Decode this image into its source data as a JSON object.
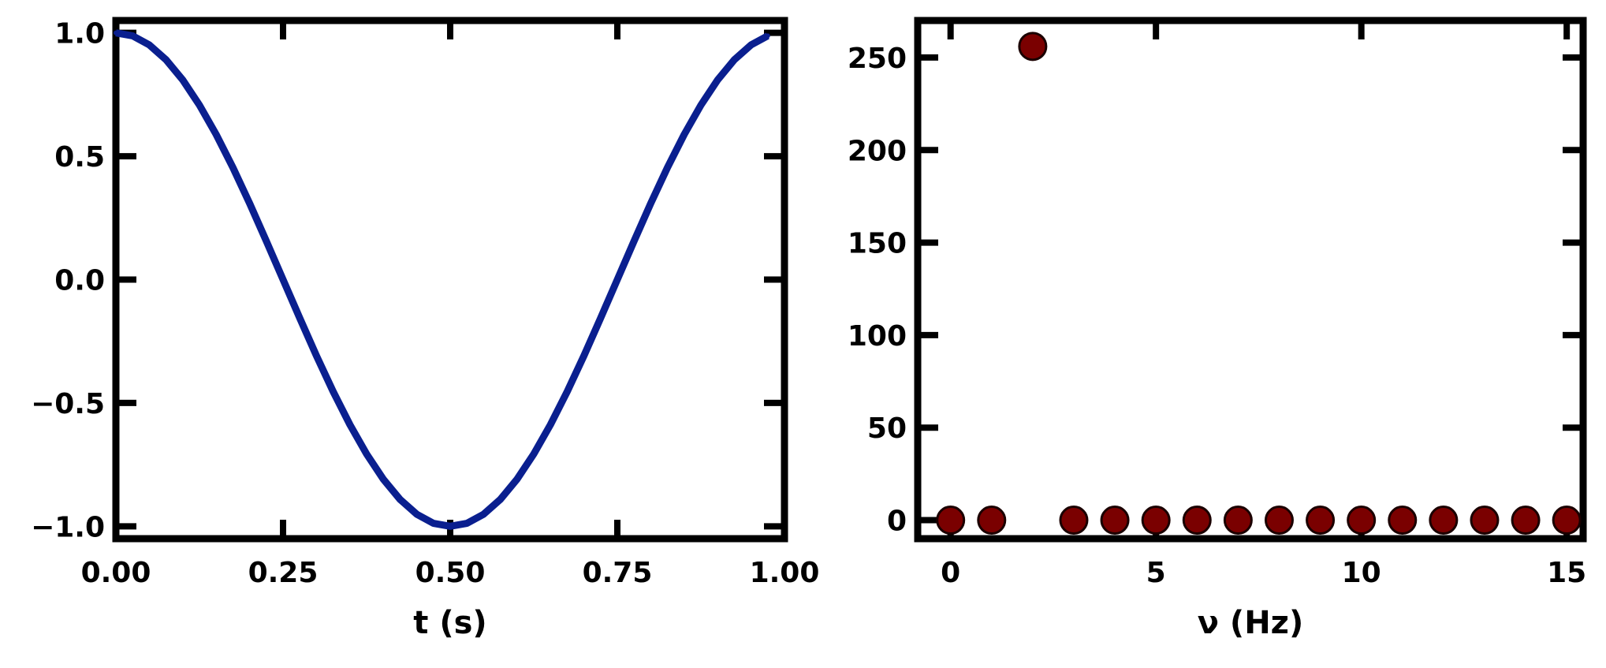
{
  "chart_data": [
    {
      "type": "line",
      "title": "",
      "xlabel": "t (s)",
      "ylabel": "",
      "xlim": [
        0.0,
        1.0
      ],
      "ylim": [
        -1.05,
        1.05
      ],
      "xticks": [
        0.0,
        0.25,
        0.5,
        0.75,
        1.0
      ],
      "xtick_labels": [
        "0.00",
        "0.25",
        "0.50",
        "0.75",
        "1.00"
      ],
      "yticks": [
        -1.0,
        -0.5,
        0.0,
        0.5,
        1.0
      ],
      "ytick_labels": [
        "−1.0",
        "−0.5",
        "0.0",
        "0.5",
        "1.0"
      ],
      "grid": false,
      "color": "#0a1f8f",
      "series": [
        {
          "x": [
            0.0,
            0.025,
            0.05,
            0.075,
            0.1,
            0.125,
            0.15,
            0.175,
            0.2,
            0.225,
            0.25,
            0.275,
            0.3,
            0.325,
            0.35,
            0.375,
            0.4,
            0.425,
            0.45,
            0.475,
            0.5,
            0.525,
            0.55,
            0.575,
            0.6,
            0.625,
            0.65,
            0.675,
            0.7,
            0.725,
            0.75,
            0.775,
            0.8,
            0.825,
            0.85,
            0.875,
            0.9,
            0.925,
            0.95,
            0.975
          ],
          "y": [
            1.0,
            0.988,
            0.951,
            0.891,
            0.809,
            0.707,
            0.588,
            0.454,
            0.309,
            0.156,
            0.0,
            -0.156,
            -0.309,
            -0.454,
            -0.588,
            -0.707,
            -0.809,
            -0.891,
            -0.951,
            -0.988,
            -1.0,
            -0.988,
            -0.951,
            -0.891,
            -0.809,
            -0.707,
            -0.588,
            -0.454,
            -0.309,
            -0.156,
            0.0,
            0.156,
            0.309,
            0.454,
            0.588,
            0.707,
            0.809,
            0.891,
            0.951,
            0.988
          ]
        }
      ]
    },
    {
      "type": "scatter",
      "title": "",
      "xlabel": "ν (Hz)",
      "ylabel": "",
      "xlim": [
        -0.8,
        15.4
      ],
      "ylim": [
        -10,
        270
      ],
      "xticks": [
        0,
        5,
        10,
        15
      ],
      "xtick_labels": [
        "0",
        "5",
        "10",
        "15"
      ],
      "yticks": [
        0,
        50,
        100,
        150,
        200,
        250
      ],
      "ytick_labels": [
        "0",
        "50",
        "100",
        "150",
        "200",
        "250"
      ],
      "grid": false,
      "color": "#7a0000",
      "series": [
        {
          "x": [
            0,
            1,
            2,
            3,
            4,
            5,
            6,
            7,
            8,
            9,
            10,
            11,
            12,
            13,
            14,
            15
          ],
          "y": [
            0,
            0,
            256,
            0,
            0,
            0,
            0,
            0,
            0,
            0,
            0,
            0,
            0,
            0,
            0,
            0
          ]
        }
      ]
    }
  ]
}
